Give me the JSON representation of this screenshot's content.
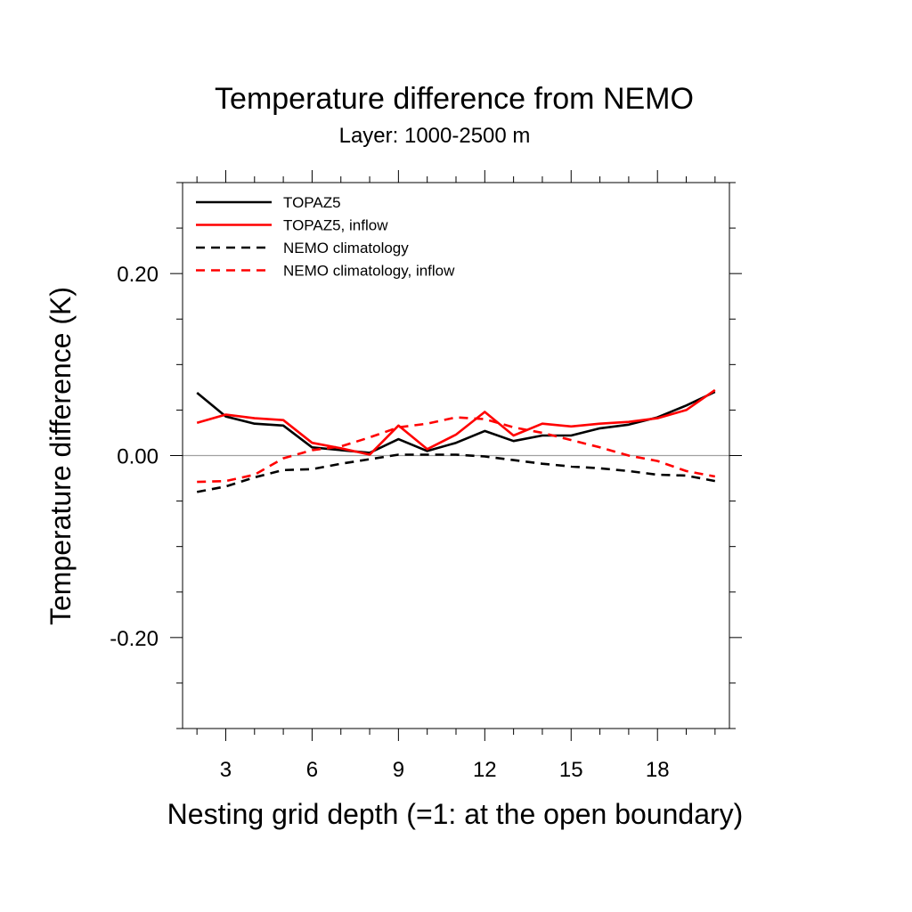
{
  "chart_data": {
    "type": "line",
    "title": "Temperature difference from NEMO",
    "subtitle": "Layer: 1000-2500 m",
    "xlabel": "Nesting grid depth (=1: at the open boundary)",
    "ylabel": "Temperature difference (K)",
    "xlim": [
      1.5,
      20.5
    ],
    "ylim": [
      -0.3,
      0.3
    ],
    "xticks": [
      3,
      6,
      9,
      12,
      15,
      18
    ],
    "xtick_labels": [
      "3",
      "6",
      "9",
      "12",
      "15",
      "18"
    ],
    "yticks": [
      -0.2,
      0.0,
      0.2
    ],
    "ytick_labels": [
      "-0.20",
      "0.00",
      "0.20"
    ],
    "zero_line": true,
    "grid": false,
    "legend_position": "top-left",
    "x": [
      2,
      3,
      4,
      5,
      6,
      7,
      8,
      9,
      10,
      11,
      12,
      13,
      14,
      15,
      16,
      17,
      18,
      19,
      20
    ],
    "series": [
      {
        "name": "TOPAZ5",
        "color": "#000000",
        "dash": "solid",
        "values": [
          0.069,
          0.043,
          0.035,
          0.033,
          0.009,
          0.006,
          0.003,
          0.018,
          0.005,
          0.014,
          0.027,
          0.016,
          0.022,
          0.022,
          0.03,
          0.034,
          0.042,
          0.055,
          0.07
        ]
      },
      {
        "name": "TOPAZ5, inflow",
        "color": "#ff0000",
        "dash": "solid",
        "values": [
          0.036,
          0.045,
          0.041,
          0.039,
          0.014,
          0.008,
          0.001,
          0.033,
          0.007,
          0.023,
          0.048,
          0.022,
          0.035,
          0.032,
          0.035,
          0.037,
          0.041,
          0.05,
          0.072
        ]
      },
      {
        "name": "NEMO climatology",
        "color": "#000000",
        "dash": "dashed",
        "values": [
          -0.04,
          -0.034,
          -0.024,
          -0.016,
          -0.015,
          -0.009,
          -0.004,
          0.001,
          0.001,
          0.001,
          -0.001,
          -0.005,
          -0.009,
          -0.012,
          -0.014,
          -0.017,
          -0.021,
          -0.022,
          -0.028
        ]
      },
      {
        "name": "NEMO climatology, inflow",
        "color": "#ff0000",
        "dash": "dashed",
        "values": [
          -0.029,
          -0.028,
          -0.021,
          -0.003,
          0.006,
          0.01,
          0.02,
          0.031,
          0.035,
          0.042,
          0.04,
          0.031,
          0.025,
          0.017,
          0.009,
          0.0,
          -0.006,
          -0.017,
          -0.023
        ]
      }
    ]
  }
}
